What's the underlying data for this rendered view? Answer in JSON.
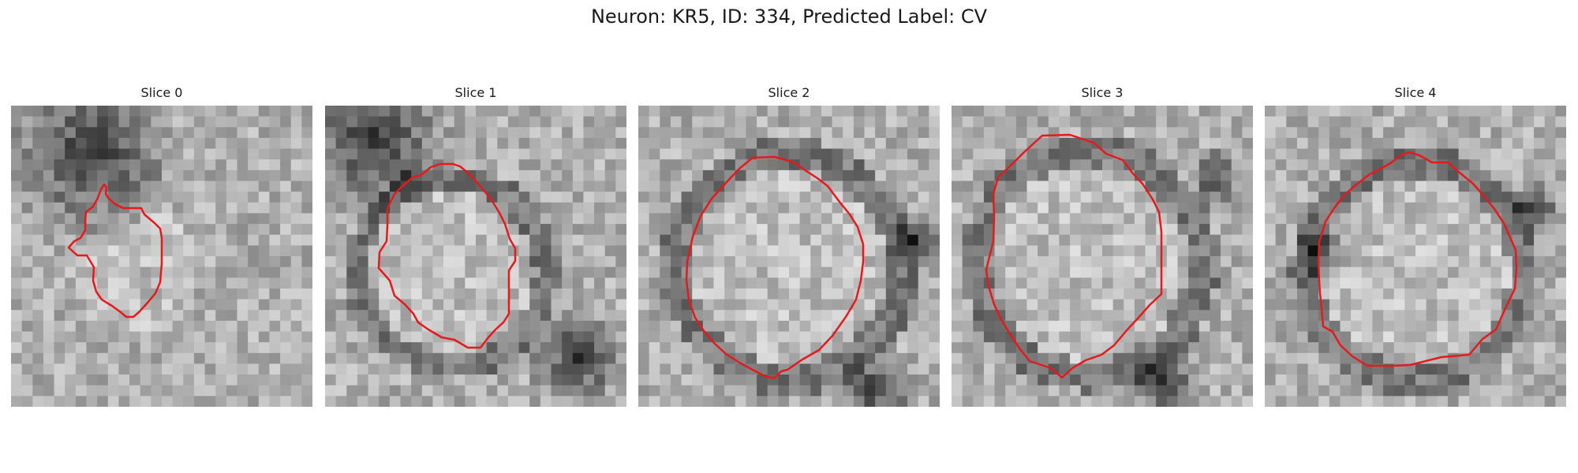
{
  "figure": {
    "title": "Neuron: KR5, ID: 334, Predicted Label: CV"
  },
  "panels": [
    {
      "title": "Slice 0"
    },
    {
      "title": "Slice 1"
    },
    {
      "title": "Slice 2"
    },
    {
      "title": "Slice 3"
    },
    {
      "title": "Slice 4"
    }
  ],
  "contour_color": "#e41a1c",
  "colormap": "grayscale"
}
